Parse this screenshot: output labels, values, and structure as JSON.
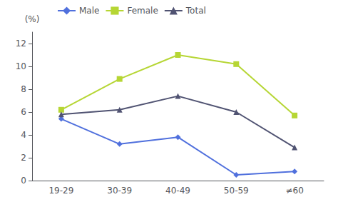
{
  "chart_data": {
    "type": "line",
    "categories": [
      "19-29",
      "30-39",
      "40-49",
      "50-59",
      "≠60"
    ],
    "series": [
      {
        "name": "Male",
        "values": [
          5.4,
          3.2,
          3.8,
          0.5,
          0.8
        ],
        "marker": "diamond"
      },
      {
        "name": "Female",
        "values": [
          6.2,
          8.9,
          11.0,
          10.2,
          5.7
        ],
        "marker": "square"
      },
      {
        "name": "Total",
        "values": [
          5.8,
          6.2,
          7.4,
          6.0,
          2.9
        ],
        "marker": "triangle"
      }
    ],
    "ylabel": "(%)",
    "ylim": [
      0,
      13
    ],
    "yticks": [
      0,
      2,
      4,
      6,
      8,
      10,
      12
    ],
    "grid": false,
    "legend": "upper left"
  }
}
